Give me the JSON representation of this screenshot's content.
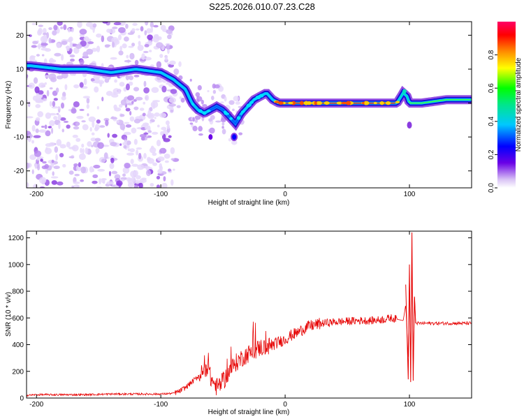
{
  "title": "S225.2026.010.07.23.C28",
  "chart_data": [
    {
      "type": "heatmap",
      "name": "spectrogram",
      "xlabel": "Height of straight line (km)",
      "ylabel": "Frequency (Hz)",
      "xlim": [
        -208,
        150
      ],
      "ylim": [
        -25,
        24
      ],
      "xticks": [
        -200,
        -100,
        0,
        100
      ],
      "yticks": [
        -20,
        -10,
        0,
        10,
        20
      ],
      "colorbar": {
        "label": "Normalized spectral amplitude",
        "range": [
          0,
          1
        ],
        "ticks": [
          "0.0",
          "0.2",
          "0.4",
          "0.6",
          "0.8"
        ]
      },
      "ridge": {
        "x": [
          -205,
          -180,
          -160,
          -140,
          -120,
          -100,
          -90,
          -80,
          -75,
          -70,
          -65,
          -60,
          -55,
          -50,
          -45,
          -40,
          -35,
          -30,
          -25,
          -20,
          -15,
          -10,
          -5,
          0,
          10,
          30,
          50,
          70,
          85,
          90,
          95,
          98,
          100,
          110,
          130,
          150
        ],
        "y": [
          11,
          10,
          10,
          9,
          10,
          9,
          7,
          4,
          0,
          -2,
          -3,
          -2,
          -1,
          -2,
          -4,
          -6,
          -3,
          -1,
          1,
          2,
          3,
          1,
          0,
          0,
          0,
          0,
          0,
          0,
          0,
          0,
          3,
          2,
          0,
          0,
          1,
          1
        ]
      }
    },
    {
      "type": "line",
      "name": "snr",
      "xlabel": "Height of straight line (km)",
      "ylabel": "SNR (10 * v/v)",
      "xlim": [
        -208,
        150
      ],
      "ylim": [
        0,
        1250
      ],
      "xticks": [
        -200,
        -100,
        0,
        100
      ],
      "yticks": [
        0,
        200,
        400,
        600,
        800,
        1000,
        1200
      ],
      "color": "#e60000",
      "series": [
        {
          "name": "SNR",
          "x": [
            -208,
            -200,
            -180,
            -160,
            -140,
            -120,
            -100,
            -90,
            -85,
            -80,
            -75,
            -70,
            -65,
            -62,
            -60,
            -55,
            -50,
            -45,
            -40,
            -35,
            -30,
            -25,
            -20,
            -15,
            -10,
            -5,
            0,
            5,
            10,
            15,
            20,
            25,
            30,
            40,
            50,
            60,
            70,
            80,
            85,
            90,
            95,
            97,
            99,
            100,
            101,
            102,
            103,
            104,
            105,
            110,
            120,
            130,
            140,
            150
          ],
          "y": [
            20,
            25,
            25,
            25,
            30,
            30,
            30,
            35,
            50,
            80,
            120,
            160,
            200,
            250,
            150,
            80,
            120,
            200,
            260,
            300,
            330,
            350,
            380,
            380,
            400,
            420,
            440,
            470,
            490,
            520,
            540,
            550,
            560,
            570,
            575,
            580,
            580,
            590,
            600,
            590,
            580,
            700,
            300,
            900,
            200,
            1100,
            150,
            800,
            560,
            560,
            560,
            560,
            560,
            560
          ]
        }
      ]
    }
  ]
}
